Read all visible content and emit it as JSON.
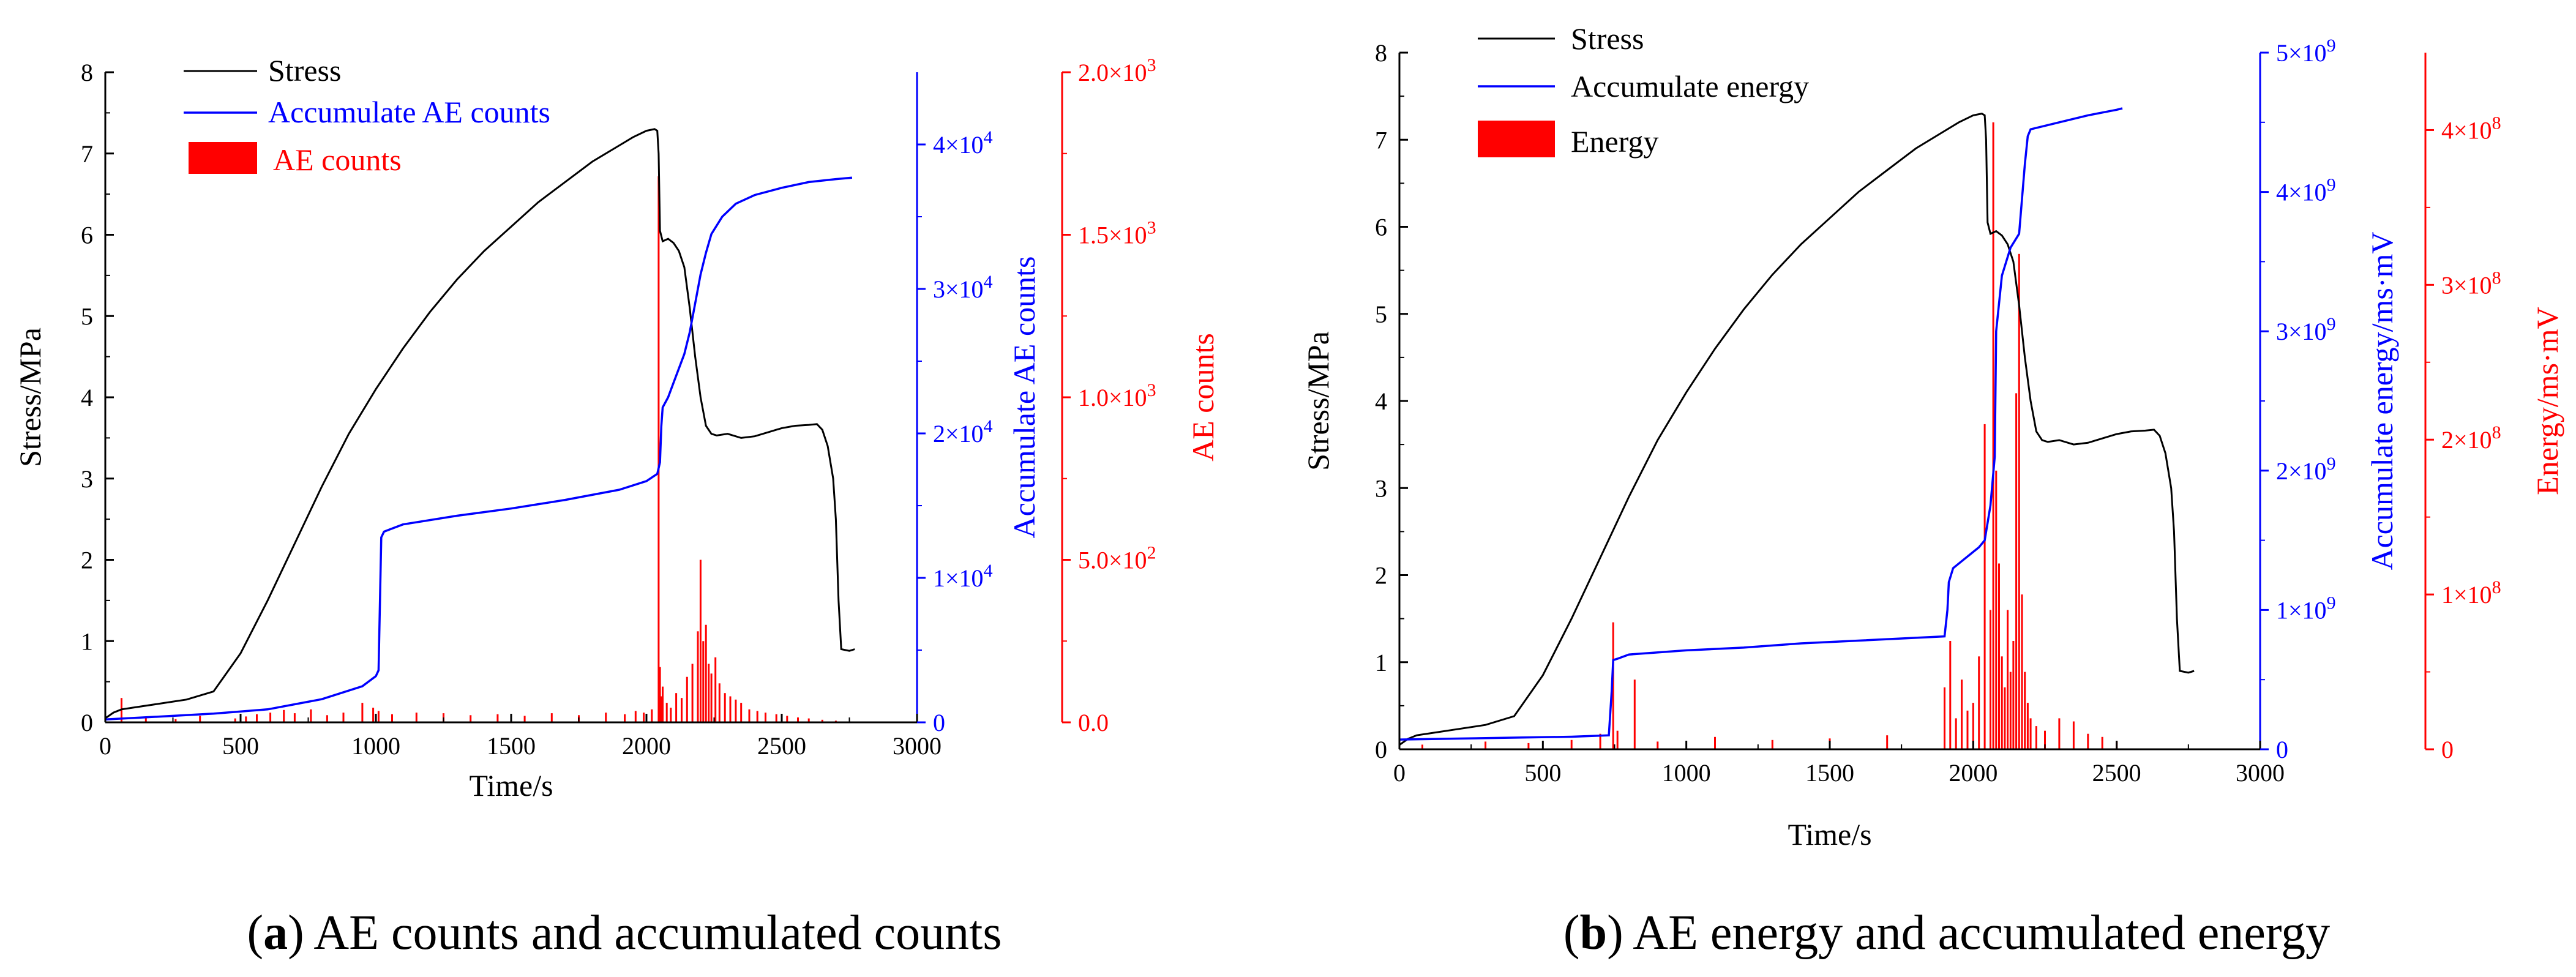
{
  "colors": {
    "stress": "#000000",
    "accum": "#0000ff",
    "bars": "#ff0000"
  },
  "chart_data": [
    {
      "type": "line",
      "id": "a",
      "caption": {
        "letter": "a",
        "text": ") AE counts and accumulated counts"
      },
      "xlabel": "Time/s",
      "ylabel_left": "Stress/MPa",
      "ylabel_right1": "Accumulate AE counts",
      "ylabel_right2": "AE counts",
      "xlim": [
        0,
        3000
      ],
      "x_ticks": [
        "0",
        "500",
        "1000",
        "1500",
        "2000",
        "2500",
        "3000"
      ],
      "y_left_lim": [
        0,
        8
      ],
      "y_left_ticks": [
        "0",
        "1",
        "2",
        "3",
        "4",
        "5",
        "6",
        "7",
        "8"
      ],
      "y_right1_lim": [
        0,
        45000
      ],
      "y_right1_ticks": [
        {
          "value": 0,
          "mant": "0",
          "exp": ""
        },
        {
          "value": 10000,
          "mant": "1×10",
          "exp": "4"
        },
        {
          "value": 20000,
          "mant": "2×10",
          "exp": "4"
        },
        {
          "value": 30000,
          "mant": "3×10",
          "exp": "4"
        },
        {
          "value": 40000,
          "mant": "4×10",
          "exp": "4"
        }
      ],
      "y_right2_lim": [
        0,
        2000
      ],
      "y_right2_ticks": [
        {
          "value": 0,
          "mant": "0.0",
          "exp": ""
        },
        {
          "value": 500,
          "mant": "5.0×10",
          "exp": "2"
        },
        {
          "value": 1000,
          "mant": "1.0×10",
          "exp": "3"
        },
        {
          "value": 1500,
          "mant": "1.5×10",
          "exp": "3"
        },
        {
          "value": 2000,
          "mant": "2.0×10",
          "exp": "3"
        }
      ],
      "legend": [
        "Stress",
        "Accumulate AE counts",
        "AE counts"
      ],
      "series": [
        {
          "name": "Stress",
          "axis": "left",
          "kind": "line",
          "x": [
            0,
            30,
            60,
            100,
            200,
            300,
            400,
            500,
            600,
            700,
            800,
            900,
            1000,
            1100,
            1200,
            1300,
            1400,
            1500,
            1600,
            1700,
            1800,
            1900,
            1950,
            2000,
            2030,
            2040,
            2045,
            2050,
            2060,
            2080,
            2100,
            2120,
            2140,
            2160,
            2180,
            2200,
            2220,
            2240,
            2260,
            2300,
            2350,
            2400,
            2450,
            2500,
            2550,
            2600,
            2630,
            2650,
            2670,
            2690,
            2700,
            2710,
            2720,
            2750,
            2770
          ],
          "y": [
            0.05,
            0.12,
            0.16,
            0.18,
            0.23,
            0.28,
            0.38,
            0.85,
            1.5,
            2.2,
            2.9,
            3.55,
            4.1,
            4.6,
            5.05,
            5.45,
            5.8,
            6.1,
            6.4,
            6.65,
            6.9,
            7.1,
            7.2,
            7.28,
            7.3,
            7.28,
            7.0,
            6.05,
            5.92,
            5.95,
            5.9,
            5.8,
            5.6,
            5.1,
            4.5,
            4.0,
            3.65,
            3.55,
            3.53,
            3.55,
            3.5,
            3.52,
            3.57,
            3.62,
            3.65,
            3.66,
            3.67,
            3.6,
            3.4,
            3.0,
            2.5,
            1.5,
            0.9,
            0.88,
            0.9
          ]
        },
        {
          "name": "Accumulate AE counts",
          "axis": "right1",
          "kind": "line",
          "x": [
            0,
            200,
            400,
            600,
            800,
            950,
            1000,
            1010,
            1020,
            1030,
            1100,
            1300,
            1500,
            1700,
            1900,
            2000,
            2040,
            2050,
            2055,
            2060,
            2080,
            2100,
            2140,
            2160,
            2180,
            2200,
            2220,
            2240,
            2280,
            2330,
            2400,
            2500,
            2600,
            2700,
            2760
          ],
          "y": [
            200,
            400,
            600,
            900,
            1600,
            2500,
            3200,
            3600,
            12800,
            13200,
            13700,
            14300,
            14800,
            15400,
            16100,
            16700,
            17200,
            18000,
            20500,
            21800,
            22500,
            23500,
            25500,
            27000,
            29000,
            31000,
            32500,
            33800,
            35000,
            35900,
            36500,
            37000,
            37400,
            37600,
            37700
          ]
        },
        {
          "name": "AE counts",
          "axis": "right2",
          "kind": "bars",
          "x": [
            60,
            150,
            260,
            350,
            480,
            520,
            560,
            610,
            660,
            700,
            760,
            820,
            880,
            950,
            990,
            1010,
            1060,
            1150,
            1250,
            1350,
            1450,
            1550,
            1650,
            1750,
            1850,
            1920,
            1960,
            1990,
            2020,
            2045,
            2050,
            2055,
            2060,
            2075,
            2090,
            2110,
            2130,
            2150,
            2170,
            2190,
            2200,
            2210,
            2220,
            2230,
            2240,
            2255,
            2270,
            2290,
            2310,
            2330,
            2350,
            2380,
            2410,
            2440,
            2480,
            2520,
            2560,
            2600,
            2650,
            2700
          ],
          "y": [
            75,
            15,
            10,
            20,
            12,
            18,
            25,
            30,
            38,
            28,
            40,
            22,
            30,
            60,
            45,
            35,
            25,
            30,
            28,
            22,
            25,
            20,
            28,
            22,
            30,
            25,
            35,
            30,
            40,
            1680,
            170,
            80,
            110,
            60,
            45,
            90,
            75,
            140,
            180,
            280,
            500,
            250,
            300,
            180,
            150,
            200,
            120,
            90,
            80,
            70,
            60,
            40,
            35,
            30,
            25,
            20,
            15,
            12,
            8,
            5
          ]
        }
      ]
    },
    {
      "type": "line",
      "id": "b",
      "caption": {
        "letter": "b",
        "text": ") AE energy and accumulated energy"
      },
      "xlabel": "Time/s",
      "ylabel_left": "Stress/MPa",
      "ylabel_right1": "Accumulate energy/ms·mV",
      "ylabel_right2": "Energy/ms·mV",
      "xlim": [
        0,
        3000
      ],
      "x_ticks": [
        "0",
        "500",
        "1000",
        "1500",
        "2000",
        "2500",
        "3000"
      ],
      "y_left_lim": [
        0,
        8
      ],
      "y_left_ticks": [
        "0",
        "1",
        "2",
        "3",
        "4",
        "5",
        "6",
        "7",
        "8"
      ],
      "y_right1_lim": [
        0,
        5000000000
      ],
      "y_right1_ticks": [
        {
          "value": 0,
          "mant": "0",
          "exp": ""
        },
        {
          "value": 1000000000,
          "mant": "1×10",
          "exp": "9"
        },
        {
          "value": 2000000000,
          "mant": "2×10",
          "exp": "9"
        },
        {
          "value": 3000000000,
          "mant": "3×10",
          "exp": "9"
        },
        {
          "value": 4000000000,
          "mant": "4×10",
          "exp": "9"
        },
        {
          "value": 5000000000,
          "mant": "5×10",
          "exp": "9"
        }
      ],
      "y_right2_lim": [
        0,
        450000000
      ],
      "y_right2_ticks": [
        {
          "value": 0,
          "mant": "0",
          "exp": ""
        },
        {
          "value": 100000000,
          "mant": "1×10",
          "exp": "8"
        },
        {
          "value": 200000000,
          "mant": "2×10",
          "exp": "8"
        },
        {
          "value": 300000000,
          "mant": "3×10",
          "exp": "8"
        },
        {
          "value": 400000000,
          "mant": "4×10",
          "exp": "8"
        }
      ],
      "legend": [
        "Stress",
        "Accumulate energy",
        "Energy"
      ],
      "series": [
        {
          "name": "Stress",
          "axis": "left",
          "kind": "line",
          "x": [
            0,
            30,
            60,
            100,
            200,
            300,
            400,
            500,
            600,
            700,
            800,
            900,
            1000,
            1100,
            1200,
            1300,
            1400,
            1500,
            1600,
            1700,
            1800,
            1900,
            1950,
            2000,
            2030,
            2040,
            2045,
            2050,
            2060,
            2080,
            2100,
            2120,
            2140,
            2160,
            2180,
            2200,
            2220,
            2240,
            2260,
            2300,
            2350,
            2400,
            2450,
            2500,
            2550,
            2600,
            2630,
            2650,
            2670,
            2690,
            2700,
            2710,
            2720,
            2750,
            2770
          ],
          "y": [
            0.05,
            0.12,
            0.16,
            0.18,
            0.23,
            0.28,
            0.38,
            0.85,
            1.5,
            2.2,
            2.9,
            3.55,
            4.1,
            4.6,
            5.05,
            5.45,
            5.8,
            6.1,
            6.4,
            6.65,
            6.9,
            7.1,
            7.2,
            7.28,
            7.3,
            7.28,
            7.0,
            6.05,
            5.92,
            5.95,
            5.9,
            5.8,
            5.6,
            5.1,
            4.5,
            4.0,
            3.65,
            3.55,
            3.53,
            3.55,
            3.5,
            3.52,
            3.57,
            3.62,
            3.65,
            3.66,
            3.67,
            3.6,
            3.4,
            3.0,
            2.5,
            1.5,
            0.9,
            0.88,
            0.9
          ]
        },
        {
          "name": "Accumulate energy",
          "axis": "right1",
          "kind": "line",
          "x": [
            0,
            300,
            600,
            730,
            740,
            745,
            760,
            800,
            1000,
            1200,
            1400,
            1600,
            1800,
            1900,
            1910,
            1915,
            1930,
            1960,
            1990,
            2020,
            2040,
            2060,
            2075,
            2080,
            2100,
            2130,
            2160,
            2180,
            2190,
            2200,
            2300,
            2400,
            2500,
            2520
          ],
          "y": [
            70000000,
            80000000,
            90000000,
            100000000,
            420000000,
            640000000,
            650000000,
            680000000,
            710000000,
            730000000,
            760000000,
            780000000,
            800000000,
            810000000,
            1000000000,
            1200000000,
            1300000000,
            1350000000,
            1400000000,
            1450000000,
            1500000000,
            1750000000,
            2100000000,
            3000000000,
            3400000000,
            3600000000,
            3700000000,
            4200000000,
            4400000000,
            4450000000,
            4500000000,
            4550000000,
            4590000000,
            4600000000
          ]
        },
        {
          "name": "Energy",
          "axis": "right2",
          "kind": "bars",
          "x": [
            80,
            300,
            450,
            600,
            700,
            745,
            760,
            820,
            900,
            1100,
            1300,
            1500,
            1700,
            1900,
            1920,
            1940,
            1960,
            1980,
            2000,
            2020,
            2040,
            2060,
            2070,
            2080,
            2090,
            2100,
            2110,
            2120,
            2130,
            2140,
            2150,
            2160,
            2170,
            2180,
            2190,
            2200,
            2220,
            2250,
            2300,
            2350,
            2400,
            2450,
            2500
          ],
          "y": [
            3000000,
            5000000,
            4000000,
            6000000,
            10000000,
            82000000,
            12000000,
            45000000,
            5000000,
            8000000,
            6000000,
            7000000,
            9000000,
            40000000,
            70000000,
            20000000,
            45000000,
            25000000,
            30000000,
            60000000,
            210000000,
            90000000,
            405000000,
            180000000,
            120000000,
            60000000,
            40000000,
            90000000,
            50000000,
            70000000,
            230000000,
            320000000,
            100000000,
            50000000,
            30000000,
            20000000,
            15000000,
            12000000,
            20000000,
            18000000,
            10000000,
            8000000,
            5000000
          ]
        }
      ]
    }
  ]
}
